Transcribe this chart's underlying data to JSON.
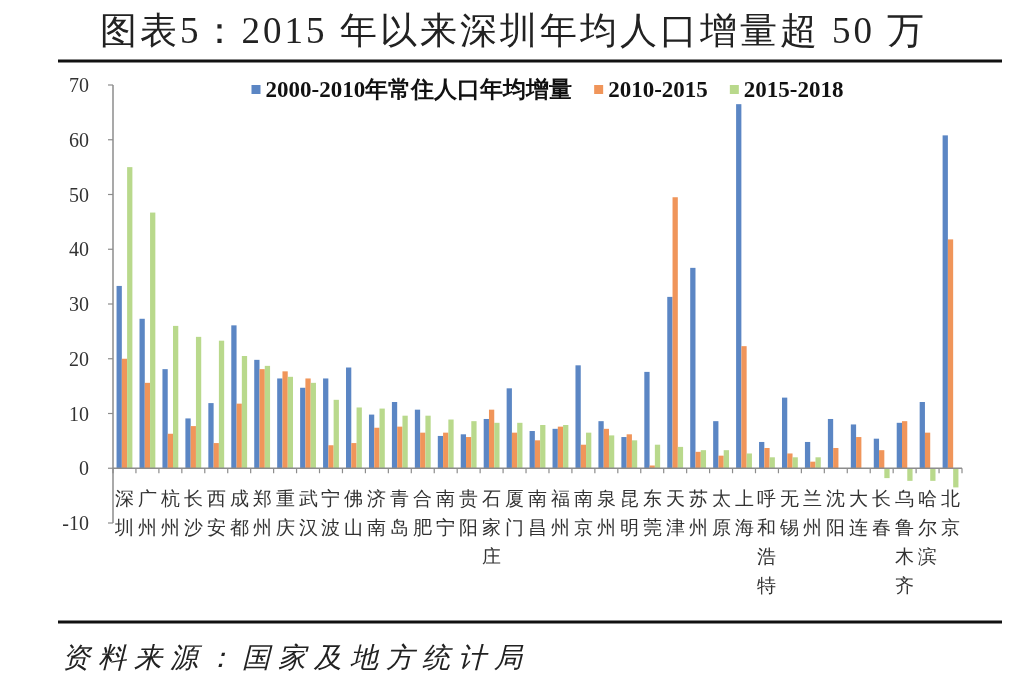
{
  "chart_data": {
    "type": "bar",
    "title": "图表5：2015 年以来深圳年均人口增量超 50 万",
    "categories": [
      "深圳",
      "广州",
      "杭州",
      "长沙",
      "西安",
      "成都",
      "郑州",
      "重庆",
      "武汉",
      "宁波",
      "佛山",
      "济南",
      "青岛",
      "合肥",
      "南宁",
      "贵阳",
      "石家庄",
      "厦门",
      "南昌",
      "福州",
      "南京",
      "泉州",
      "昆明",
      "东莞",
      "天津",
      "苏州",
      "太原",
      "上海",
      "呼和浩特",
      "无锡",
      "兰州",
      "沈阳",
      "大连",
      "长春",
      "乌鲁木齐",
      "哈尔滨",
      "北京"
    ],
    "series": [
      {
        "name": "2000-2010年常住人口年均增量",
        "color": "#5b86c4",
        "values": [
          33.3,
          27.3,
          18.1,
          9.1,
          11.9,
          26.1,
          19.8,
          16.4,
          14.7,
          16.4,
          18.4,
          9.8,
          12.1,
          10.7,
          5.9,
          6.2,
          9.0,
          14.6,
          6.8,
          7.2,
          18.8,
          8.6,
          5.7,
          17.6,
          31.3,
          36.6,
          8.6,
          66.5,
          4.8,
          12.9,
          4.8,
          9.0,
          8.0,
          5.4,
          8.3,
          12.1,
          60.8
        ]
      },
      {
        "name": "2010-2015",
        "color": "#f0955a",
        "values": [
          20.0,
          15.6,
          6.3,
          7.7,
          4.6,
          11.8,
          18.1,
          17.7,
          16.4,
          4.2,
          4.6,
          7.4,
          7.6,
          6.5,
          6.5,
          5.7,
          10.7,
          6.5,
          5.1,
          7.6,
          4.3,
          7.2,
          6.2,
          0.5,
          49.5,
          3.0,
          2.3,
          22.3,
          3.7,
          2.7,
          1.2,
          3.7,
          5.7,
          3.3,
          8.6,
          6.5,
          41.8
        ]
      },
      {
        "name": "2015-2018",
        "color": "#b9d98c",
        "values": [
          55.0,
          46.7,
          26.0,
          24.0,
          23.3,
          20.5,
          18.7,
          16.7,
          15.6,
          12.5,
          11.1,
          10.9,
          9.6,
          9.6,
          8.9,
          8.6,
          8.3,
          8.3,
          7.9,
          7.9,
          6.5,
          6.0,
          5.1,
          4.3,
          3.9,
          3.3,
          3.3,
          2.7,
          2.0,
          2.0,
          2.0,
          null,
          null,
          -1.8,
          -2.3,
          -2.3,
          -3.5
        ]
      }
    ],
    "ylim": [
      -10,
      70
    ],
    "yticks": [
      -10,
      0,
      10,
      20,
      30,
      40,
      50,
      60,
      70
    ],
    "legend": "top",
    "annotations": [
      "资料来源：国家及地方统计局"
    ]
  }
}
